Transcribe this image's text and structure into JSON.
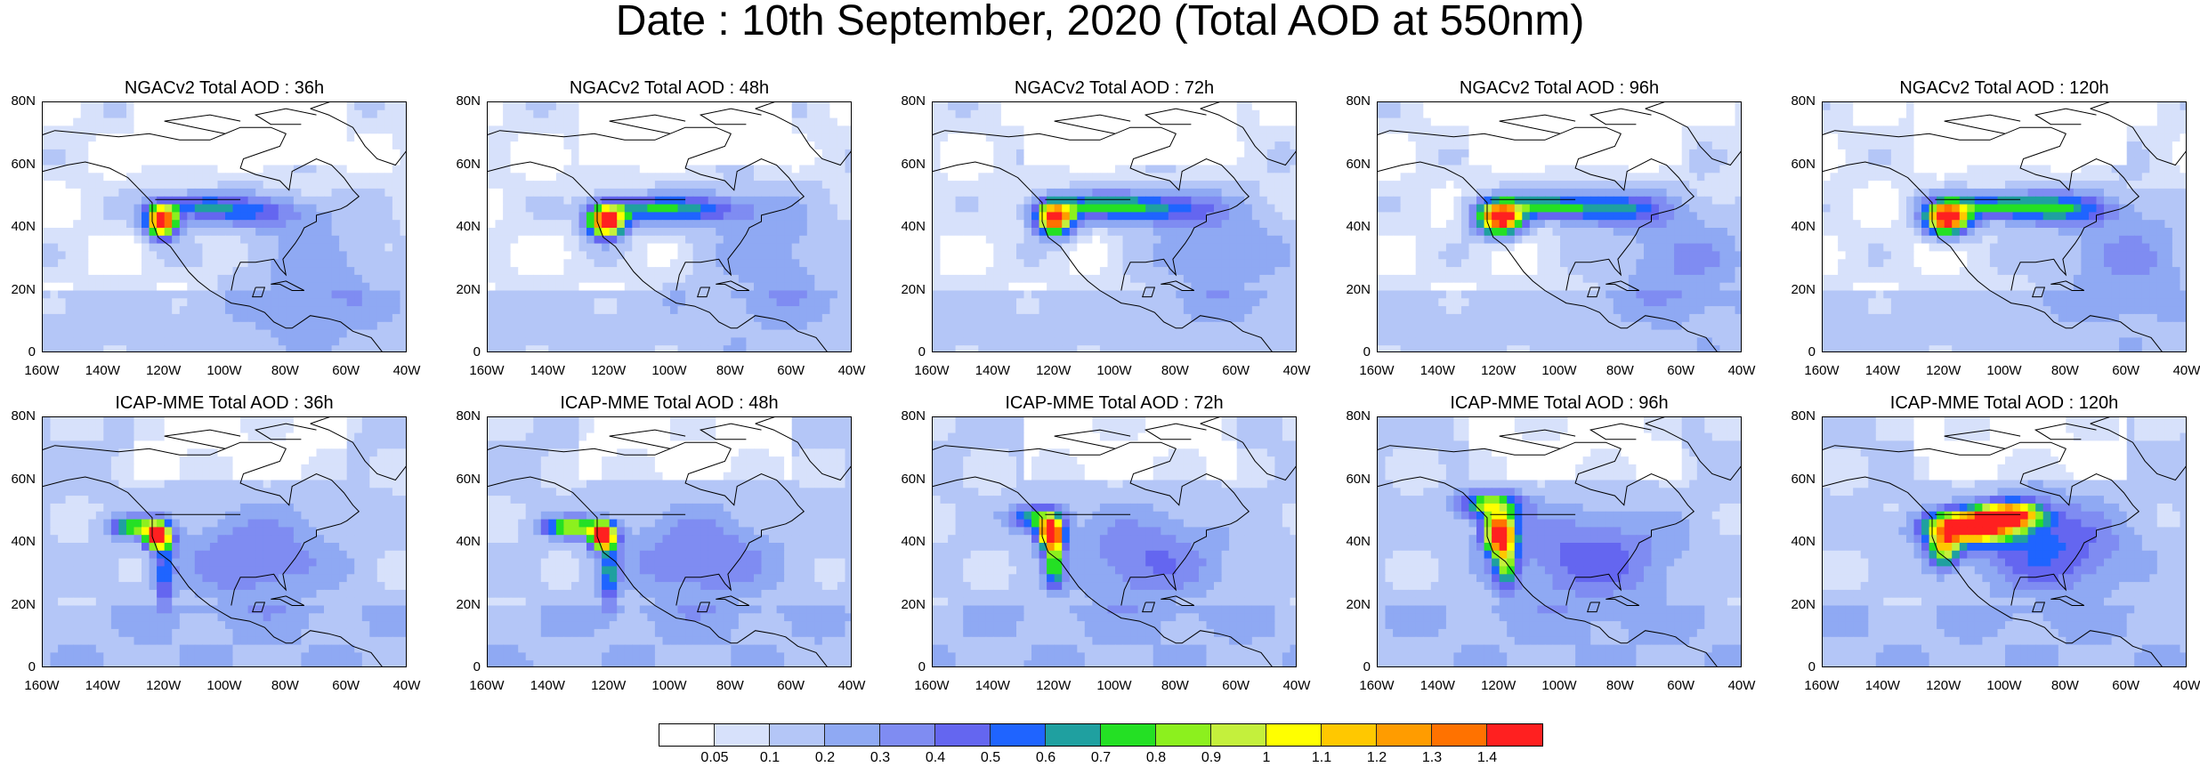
{
  "title": "Date : 10th September, 2020 (Total AOD at 550nm)",
  "map_axes": {
    "x_ticks": [
      "160W",
      "140W",
      "120W",
      "100W",
      "80W",
      "60W",
      "40W"
    ],
    "y_ticks": [
      "80N",
      "60N",
      "40N",
      "20N",
      "0"
    ],
    "lon_range": [
      -160,
      -40
    ],
    "lat_range": [
      0,
      80
    ]
  },
  "colors": {
    "background": "#ffffff",
    "coastline": "#000000",
    "bins": [
      "#ffffff",
      "#d7e1fb",
      "#b4c6f7",
      "#8fa9f3",
      "#7f8cf2",
      "#6466f0",
      "#1f64ff",
      "#1fa0a0",
      "#24e024",
      "#8cf01e",
      "#c4f03c",
      "#ffff00",
      "#ffc800",
      "#ff9c00",
      "#ff7200",
      "#ff2020"
    ]
  },
  "colorbar": {
    "labels": [
      "0.05",
      "0.1",
      "0.2",
      "0.3",
      "0.4",
      "0.5",
      "0.6",
      "0.7",
      "0.8",
      "0.9",
      "1",
      "1.1",
      "1.2",
      "1.3",
      "1.4"
    ]
  },
  "panels": [
    {
      "title": "NGACv2 Total AOD : 36h",
      "plumes": [
        {
          "lon": -121,
          "lat": 42,
          "peak": 1.5,
          "rx": 5,
          "ry": 5
        },
        {
          "lon": -110,
          "lat": 47,
          "peak": 0.45,
          "rx": 14,
          "ry": 4
        },
        {
          "lon": -90,
          "lat": 45,
          "peak": 0.35,
          "rx": 20,
          "ry": 5
        },
        {
          "lon": -70,
          "lat": 25,
          "peak": 0.2,
          "rx": 25,
          "ry": 20
        }
      ]
    },
    {
      "title": "NGACv2 Total AOD : 48h",
      "plumes": [
        {
          "lon": -121,
          "lat": 42,
          "peak": 1.5,
          "rx": 6,
          "ry": 5
        },
        {
          "lon": -108,
          "lat": 46,
          "peak": 0.5,
          "rx": 16,
          "ry": 4
        },
        {
          "lon": -88,
          "lat": 46,
          "peak": 0.35,
          "rx": 18,
          "ry": 5
        },
        {
          "lon": -65,
          "lat": 30,
          "peak": 0.2,
          "rx": 25,
          "ry": 20
        }
      ]
    },
    {
      "title": "NGACv2 Total AOD : 72h",
      "plumes": [
        {
          "lon": -120,
          "lat": 43,
          "peak": 1.45,
          "rx": 6,
          "ry": 5
        },
        {
          "lon": -105,
          "lat": 47,
          "peak": 0.55,
          "rx": 18,
          "ry": 4
        },
        {
          "lon": -85,
          "lat": 46,
          "peak": 0.4,
          "rx": 18,
          "ry": 5
        },
        {
          "lon": -65,
          "lat": 32,
          "peak": 0.22,
          "rx": 25,
          "ry": 18
        }
      ]
    },
    {
      "title": "NGACv2 Total AOD : 96h",
      "plumes": [
        {
          "lon": -120,
          "lat": 43,
          "peak": 1.5,
          "rx": 7,
          "ry": 5
        },
        {
          "lon": -105,
          "lat": 47,
          "peak": 0.55,
          "rx": 18,
          "ry": 4
        },
        {
          "lon": -83,
          "lat": 46,
          "peak": 0.45,
          "rx": 18,
          "ry": 5
        },
        {
          "lon": -60,
          "lat": 30,
          "peak": 0.25,
          "rx": 25,
          "ry": 18
        }
      ]
    },
    {
      "title": "NGACv2 Total AOD : 120h",
      "plumes": [
        {
          "lon": -119,
          "lat": 43,
          "peak": 1.5,
          "rx": 7,
          "ry": 5
        },
        {
          "lon": -103,
          "lat": 47,
          "peak": 0.6,
          "rx": 18,
          "ry": 4
        },
        {
          "lon": -82,
          "lat": 46,
          "peak": 0.45,
          "rx": 18,
          "ry": 5
        },
        {
          "lon": -60,
          "lat": 30,
          "peak": 0.25,
          "rx": 25,
          "ry": 18
        }
      ]
    },
    {
      "title": "ICAP-MME Total AOD : 36h",
      "plumes": [
        {
          "lon": -122,
          "lat": 42,
          "peak": 1.5,
          "rx": 4,
          "ry": 4
        },
        {
          "lon": -130,
          "lat": 45,
          "peak": 0.7,
          "rx": 8,
          "ry": 3
        },
        {
          "lon": -120,
          "lat": 30,
          "peak": 0.45,
          "rx": 3,
          "ry": 10
        },
        {
          "lon": -90,
          "lat": 35,
          "peak": 0.3,
          "rx": 25,
          "ry": 15
        }
      ]
    },
    {
      "title": "ICAP-MME Total AOD : 48h",
      "plumes": [
        {
          "lon": -122,
          "lat": 42,
          "peak": 1.5,
          "rx": 4,
          "ry": 4
        },
        {
          "lon": -132,
          "lat": 45,
          "peak": 0.8,
          "rx": 10,
          "ry": 3
        },
        {
          "lon": -120,
          "lat": 30,
          "peak": 0.5,
          "rx": 3,
          "ry": 10
        },
        {
          "lon": -90,
          "lat": 35,
          "peak": 0.3,
          "rx": 25,
          "ry": 15
        }
      ]
    },
    {
      "title": "ICAP-MME Total AOD : 72h",
      "plumes": [
        {
          "lon": -121,
          "lat": 43,
          "peak": 1.5,
          "rx": 4,
          "ry": 5
        },
        {
          "lon": -126,
          "lat": 48,
          "peak": 0.6,
          "rx": 8,
          "ry": 4
        },
        {
          "lon": -120,
          "lat": 33,
          "peak": 0.6,
          "rx": 3,
          "ry": 8
        },
        {
          "lon": -90,
          "lat": 35,
          "peak": 0.3,
          "rx": 25,
          "ry": 15
        }
      ]
    },
    {
      "title": "ICAP-MME Total AOD : 96h",
      "plumes": [
        {
          "lon": -120,
          "lat": 43,
          "peak": 1.5,
          "rx": 5,
          "ry": 6
        },
        {
          "lon": -123,
          "lat": 52,
          "peak": 0.8,
          "rx": 10,
          "ry": 4
        },
        {
          "lon": -118,
          "lat": 33,
          "peak": 0.6,
          "rx": 4,
          "ry": 8
        },
        {
          "lon": -90,
          "lat": 35,
          "peak": 0.35,
          "rx": 28,
          "ry": 15
        }
      ]
    },
    {
      "title": "ICAP-MME Total AOD : 120h",
      "plumes": [
        {
          "lon": -112,
          "lat": 45,
          "peak": 1.5,
          "rx": 14,
          "ry": 5
        },
        {
          "lon": -98,
          "lat": 49,
          "peak": 1.2,
          "rx": 10,
          "ry": 4
        },
        {
          "lon": -120,
          "lat": 38,
          "peak": 0.8,
          "rx": 5,
          "ry": 6
        },
        {
          "lon": -85,
          "lat": 38,
          "peak": 0.4,
          "rx": 25,
          "ry": 15
        }
      ]
    }
  ]
}
